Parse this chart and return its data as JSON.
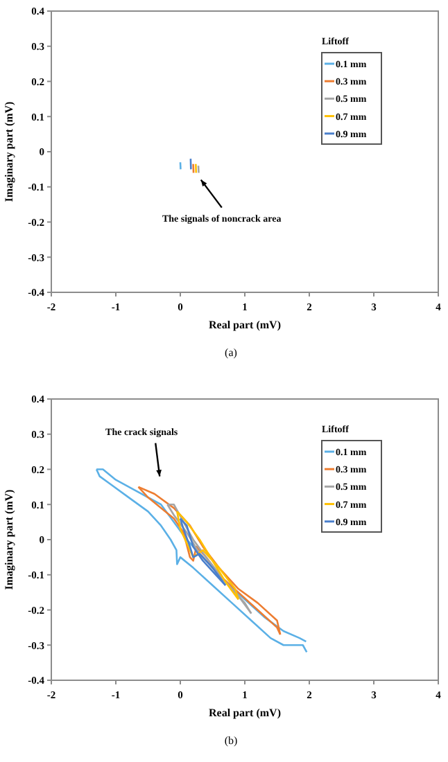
{
  "chart_data": [
    {
      "type": "line",
      "xlabel": "Real part (mV)",
      "ylabel": "Imaginary part (mV)",
      "legend_title": "Liftoff",
      "legend": "top right",
      "grid": false,
      "marker": "none",
      "line_style": "solid",
      "xlim": [
        -2,
        4
      ],
      "ylim": [
        -0.4,
        0.4
      ],
      "xticks": [
        -2,
        -1,
        0,
        1,
        2,
        3,
        4
      ],
      "yticks": [
        -0.4,
        -0.3,
        -0.2,
        -0.1,
        0,
        0.1,
        0.2,
        0.3,
        0.4
      ],
      "series": [
        {
          "name": "0.1 mm",
          "color": "#5bb0e6",
          "x": [
            0,
            0.005
          ],
          "values": [
            -0.03,
            -0.05
          ]
        },
        {
          "name": "0.3 mm",
          "color": "#ed7d31",
          "x": [
            0.2,
            0.205
          ],
          "values": [
            -0.035,
            -0.06
          ]
        },
        {
          "name": "0.5 mm",
          "color": "#a5a5a5",
          "x": [
            0.28,
            0.285
          ],
          "values": [
            -0.04,
            -0.06
          ]
        },
        {
          "name": "0.7 mm",
          "color": "#ffc000",
          "x": [
            0.24,
            0.245
          ],
          "values": [
            -0.035,
            -0.06
          ]
        },
        {
          "name": "0.9 mm",
          "color": "#4a7fcc",
          "x": [
            0.16,
            0.165
          ],
          "values": [
            -0.02,
            -0.05
          ]
        }
      ],
      "annotations": [
        "The signals of noncrack area",
        "(a)"
      ]
    },
    {
      "type": "line",
      "xlabel": "Real part (mV)",
      "ylabel": "Imaginary part (mV)",
      "legend_title": "Liftoff",
      "legend": "top right",
      "grid": false,
      "marker": "none",
      "line_style": "solid",
      "xlim": [
        -2,
        4
      ],
      "ylim": [
        -0.4,
        0.4
      ],
      "xticks": [
        -2,
        -1,
        0,
        1,
        2,
        3,
        4
      ],
      "yticks": [
        -0.4,
        -0.3,
        -0.2,
        -0.1,
        0,
        0.1,
        0.2,
        0.3,
        0.4
      ],
      "series": [
        {
          "name": "0.1 mm",
          "color": "#5bb0e6",
          "x": [
            -1.3,
            -1.2,
            -1.0,
            -0.7,
            -0.3,
            0.1,
            0.4,
            0.7,
            1.0,
            1.3,
            1.6,
            1.85,
            1.95
          ],
          "values": [
            0.2,
            0.2,
            0.17,
            0.14,
            0.1,
            0.0,
            -0.06,
            -0.12,
            -0.17,
            -0.22,
            -0.26,
            -0.28,
            -0.29
          ]
        },
        {
          "color": "#5bb0e6",
          "x": [
            -1.3,
            -1.25,
            -1.1,
            -0.8,
            -0.5,
            -0.3,
            -0.15,
            -0.06,
            -0.05,
            0.0,
            0.2,
            0.5,
            0.8,
            1.1,
            1.4,
            1.6,
            1.9,
            1.96
          ],
          "values": [
            0.2,
            0.18,
            0.16,
            0.12,
            0.08,
            0.04,
            0.0,
            -0.03,
            -0.07,
            -0.05,
            -0.08,
            -0.13,
            -0.18,
            -0.23,
            -0.28,
            -0.3,
            -0.3,
            -0.32
          ]
        },
        {
          "name": "0.3 mm",
          "color": "#ed7d31",
          "x": [
            -0.65,
            -0.4,
            -0.1,
            0.15,
            0.35,
            0.6,
            0.9,
            1.2,
            1.5,
            1.55
          ],
          "values": [
            0.15,
            0.13,
            0.09,
            0.04,
            -0.02,
            -0.08,
            -0.14,
            -0.18,
            -0.23,
            -0.27
          ]
        },
        {
          "color": "#ed7d31",
          "x": [
            -0.65,
            -0.5,
            -0.3,
            -0.1,
            0.05,
            0.15,
            0.2,
            0.25,
            0.4,
            0.6,
            0.9,
            1.2,
            1.5,
            1.55
          ],
          "values": [
            0.15,
            0.12,
            0.09,
            0.06,
            0.02,
            -0.05,
            -0.06,
            -0.02,
            -0.05,
            -0.1,
            -0.15,
            -0.2,
            -0.25,
            -0.27
          ]
        },
        {
          "name": "0.5 mm",
          "color": "#a5a5a5",
          "x": [
            -0.2,
            -0.1,
            0.05,
            0.2,
            0.4,
            0.7,
            1.0,
            1.1
          ],
          "values": [
            0.1,
            0.1,
            0.05,
            0.0,
            -0.05,
            -0.12,
            -0.18,
            -0.21
          ]
        },
        {
          "color": "#a5a5a5",
          "x": [
            -0.2,
            -0.1,
            0.1,
            0.3,
            0.6,
            0.9,
            1.1
          ],
          "values": [
            0.1,
            0.07,
            0.02,
            -0.04,
            -0.1,
            -0.16,
            -0.21
          ]
        },
        {
          "name": "0.7 mm",
          "color": "#ffc000",
          "x": [
            -0.05,
            0.1,
            0.3,
            0.5,
            0.7,
            0.9
          ],
          "values": [
            0.08,
            0.05,
            0.0,
            -0.06,
            -0.12,
            -0.17
          ]
        },
        {
          "color": "#ffc000",
          "x": [
            -0.05,
            0.0,
            0.2,
            0.35,
            0.6,
            0.85,
            0.9
          ],
          "values": [
            0.08,
            0.03,
            -0.05,
            -0.03,
            -0.08,
            -0.14,
            -0.17
          ]
        },
        {
          "name": "0.9 mm",
          "color": "#4a7fcc",
          "x": [
            0.0,
            0.1,
            0.2,
            0.35,
            0.55,
            0.7
          ],
          "values": [
            0.06,
            0.04,
            -0.02,
            -0.06,
            -0.1,
            -0.13
          ]
        },
        {
          "color": "#4a7fcc",
          "x": [
            0.0,
            0.05,
            0.15,
            0.2,
            0.3,
            0.5,
            0.7
          ],
          "values": [
            0.06,
            0.03,
            -0.02,
            -0.05,
            -0.04,
            -0.08,
            -0.13
          ]
        }
      ],
      "annotations": [
        "The crack signals",
        "(b)"
      ]
    }
  ]
}
